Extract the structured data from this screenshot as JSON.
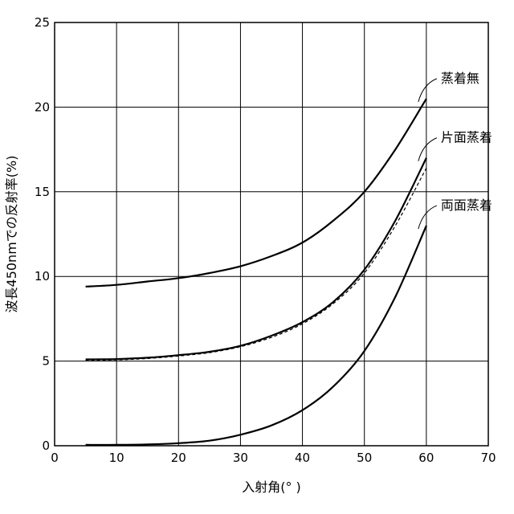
{
  "chart_data": {
    "type": "line",
    "title": "",
    "xlabel": "入射角(°  )",
    "ylabel": "波長450nmでの反射率(%)",
    "xlim": [
      0,
      70
    ],
    "ylim": [
      0,
      25
    ],
    "xticks": [
      0,
      10,
      20,
      30,
      40,
      50,
      60,
      70
    ],
    "yticks": [
      0,
      5,
      10,
      15,
      20,
      25
    ],
    "grid": true,
    "legend": "direct-labels-right",
    "x": [
      5,
      10,
      15,
      20,
      25,
      30,
      35,
      40,
      45,
      50,
      55,
      60
    ],
    "series": [
      {
        "name": "蒸着無",
        "style": "solid",
        "color": "#000000",
        "values": [
          9.4,
          9.5,
          9.7,
          9.9,
          10.2,
          10.6,
          11.2,
          12.0,
          13.3,
          15.0,
          17.5,
          20.5
        ]
      },
      {
        "name": "片面蒸着",
        "style": "solid",
        "color": "#000000",
        "values": [
          5.1,
          5.12,
          5.2,
          5.35,
          5.55,
          5.9,
          6.5,
          7.3,
          8.5,
          10.4,
          13.3,
          17.0
        ]
      },
      {
        "name": "",
        "style": "dashed",
        "color": "#000000",
        "values": [
          5.05,
          5.07,
          5.15,
          5.3,
          5.5,
          5.85,
          6.4,
          7.2,
          8.4,
          10.2,
          13.0,
          16.4
        ]
      },
      {
        "name": "両面蒸着",
        "style": "solid",
        "color": "#000000",
        "values": [
          0.05,
          0.05,
          0.08,
          0.15,
          0.3,
          0.65,
          1.2,
          2.1,
          3.5,
          5.6,
          8.8,
          13.0
        ]
      }
    ]
  }
}
